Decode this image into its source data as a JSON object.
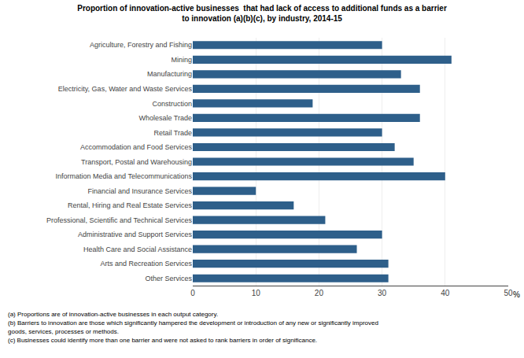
{
  "chart_data": {
    "type": "bar",
    "orientation": "horizontal",
    "title": "Proportion of innovation-active businesses  that had lack of access to additional funds as a barrier\nto innovation (a)(b)(c), by industry, 2014-15",
    "categories": [
      "Agriculture, Forestry and Fishing",
      "Mining",
      "Manufacturing",
      "Electricity, Gas, Water and Waste Services",
      "Construction",
      "Wholesale Trade",
      "Retail Trade",
      "Accommodation and Food Services",
      "Transport, Postal and Warehousing",
      "Information Media and Telecommunications",
      "Financial and Insurance Services",
      "Rental, Hiring and Real Estate Services",
      "Professional, Scientific and Technical Services",
      "Administrative and Support Services",
      "Health Care and Social Assistance",
      "Arts and Recreation Services",
      "Other Services"
    ],
    "values": [
      30,
      41,
      33,
      36,
      19,
      36,
      30,
      32,
      35,
      40,
      10,
      16,
      21,
      30,
      26,
      31,
      31
    ],
    "color": "#2E5F8A",
    "xlabel": "%",
    "xlim": [
      0,
      50
    ],
    "xticks": [
      0,
      10,
      20,
      30,
      40,
      50
    ],
    "grid": true,
    "annotations": [
      "(a) Proportions are of innovation-active businesses in each output category.",
      "(b) Barriers to innovation are those which significantly hampered the development or introduction of any new or significantly improved",
      "goods, services, processes or methods.",
      "(c) Businesses could identify more than one barrier and were not asked to rank barriers in order of significance."
    ]
  }
}
